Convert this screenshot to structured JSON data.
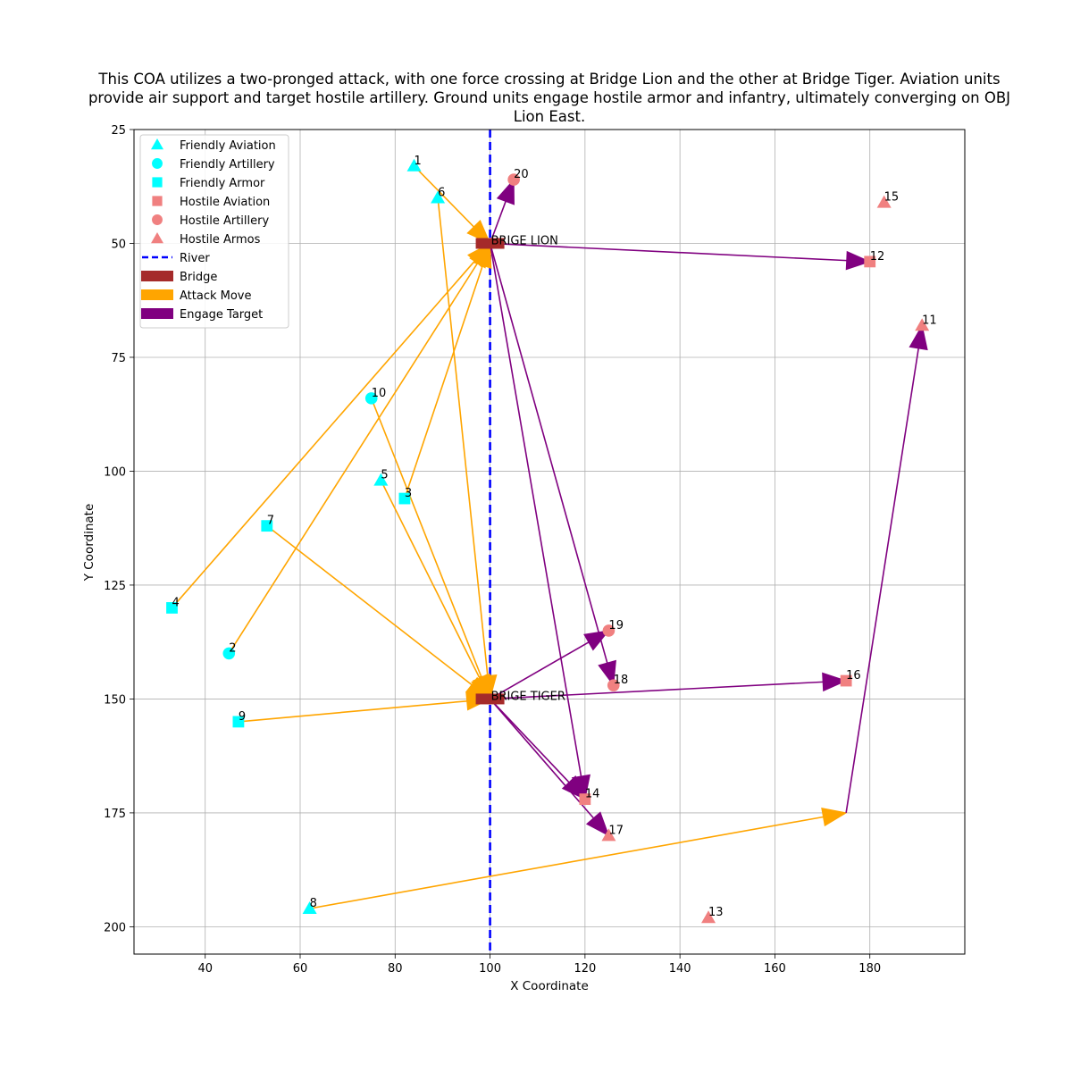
{
  "chart_data": {
    "type": "scatter",
    "title": "This COA utilizes a two-pronged attack, with one force crossing at Bridge Lion and the other at Bridge Tiger. Aviation units provide air support and target hostile artillery. Ground units engage hostile armor and infantry, ultimately converging on OBJ Lion East.",
    "title_lines": [
      "This COA utilizes a two-pronged attack, with one force crossing at Bridge Lion and the other at Bridge Tiger. Aviation units",
      "provide air support and target hostile artillery. Ground units engage hostile armor and infantry, ultimately converging on OBJ",
      "Lion East."
    ],
    "xlabel": "X Coordinate",
    "ylabel": "Y Coordinate",
    "xlim": [
      25,
      200
    ],
    "ylim": [
      206,
      25
    ],
    "y_inverted": true,
    "xticks": [
      40,
      60,
      80,
      100,
      120,
      140,
      160,
      180
    ],
    "yticks": [
      25,
      50,
      75,
      100,
      125,
      150,
      175,
      200
    ],
    "grid": true,
    "legend_position": "top-left",
    "legend": [
      {
        "label": "Friendly Aviation",
        "kind": "marker",
        "shape": "triangle",
        "color": "#00ffff"
      },
      {
        "label": "Friendly Artillery",
        "kind": "marker",
        "shape": "circle",
        "color": "#00ffff"
      },
      {
        "label": "Friendly Armor",
        "kind": "marker",
        "shape": "square",
        "color": "#00ffff"
      },
      {
        "label": "Hostile Aviation",
        "kind": "marker",
        "shape": "square",
        "color": "#f08080"
      },
      {
        "label": "Hostile Artillery",
        "kind": "marker",
        "shape": "circle",
        "color": "#f08080"
      },
      {
        "label": "Hostile Armos",
        "kind": "marker",
        "shape": "triangle",
        "color": "#f08080"
      },
      {
        "label": "River",
        "kind": "dashed-line",
        "color": "#0000ff"
      },
      {
        "label": "Bridge",
        "kind": "bar",
        "color": "#a52a2a"
      },
      {
        "label": "Attack Move",
        "kind": "bar",
        "color": "#ffa500"
      },
      {
        "label": "Engage Target",
        "kind": "bar",
        "color": "#800080"
      }
    ],
    "river": {
      "x": 100,
      "color": "#0000ff"
    },
    "bridges": [
      {
        "label": "BRIGE LION",
        "x": 100,
        "y": 50,
        "color": "#a52a2a"
      },
      {
        "label": "BRIGE TIGER",
        "x": 100,
        "y": 150,
        "color": "#a52a2a"
      }
    ],
    "units": [
      {
        "id": "1",
        "x": 84,
        "y": 33,
        "side": "friendly",
        "shape": "triangle",
        "color": "#00ffff"
      },
      {
        "id": "2",
        "x": 45,
        "y": 140,
        "side": "friendly",
        "shape": "circle",
        "color": "#00ffff"
      },
      {
        "id": "3",
        "x": 82,
        "y": 106,
        "side": "friendly",
        "shape": "square",
        "color": "#00ffff"
      },
      {
        "id": "4",
        "x": 33,
        "y": 130,
        "side": "friendly",
        "shape": "square",
        "color": "#00ffff"
      },
      {
        "id": "5",
        "x": 77,
        "y": 102,
        "side": "friendly",
        "shape": "triangle",
        "color": "#00ffff"
      },
      {
        "id": "6",
        "x": 89,
        "y": 40,
        "side": "friendly",
        "shape": "triangle",
        "color": "#00ffff"
      },
      {
        "id": "7",
        "x": 53,
        "y": 112,
        "side": "friendly",
        "shape": "square",
        "color": "#00ffff"
      },
      {
        "id": "8",
        "x": 62,
        "y": 196,
        "side": "friendly",
        "shape": "triangle",
        "color": "#00ffff"
      },
      {
        "id": "9",
        "x": 47,
        "y": 155,
        "side": "friendly",
        "shape": "square",
        "color": "#00ffff"
      },
      {
        "id": "10",
        "x": 75,
        "y": 84,
        "side": "friendly",
        "shape": "circle",
        "color": "#00ffff"
      },
      {
        "id": "11",
        "x": 191,
        "y": 68,
        "side": "hostile",
        "shape": "triangle",
        "color": "#f08080"
      },
      {
        "id": "12",
        "x": 180,
        "y": 54,
        "side": "hostile",
        "shape": "square",
        "color": "#f08080"
      },
      {
        "id": "13",
        "x": 146,
        "y": 198,
        "side": "hostile",
        "shape": "triangle",
        "color": "#f08080"
      },
      {
        "id": "14",
        "x": 120,
        "y": 172,
        "side": "hostile",
        "shape": "square",
        "color": "#f08080"
      },
      {
        "id": "15",
        "x": 183,
        "y": 41,
        "side": "hostile",
        "shape": "triangle",
        "color": "#f08080"
      },
      {
        "id": "16",
        "x": 175,
        "y": 146,
        "side": "hostile",
        "shape": "square",
        "color": "#f08080"
      },
      {
        "id": "17",
        "x": 125,
        "y": 180,
        "side": "hostile",
        "shape": "triangle",
        "color": "#f08080"
      },
      {
        "id": "18",
        "x": 126,
        "y": 147,
        "side": "hostile",
        "shape": "circle",
        "color": "#f08080"
      },
      {
        "id": "19",
        "x": 125,
        "y": 135,
        "side": "hostile",
        "shape": "circle",
        "color": "#f08080"
      },
      {
        "id": "20",
        "x": 105,
        "y": 36,
        "side": "hostile",
        "shape": "circle",
        "color": "#f08080"
      }
    ],
    "attack_moves": [
      {
        "from": [
          84,
          33
        ],
        "to": [
          100,
          50
        ]
      },
      {
        "from": [
          89,
          40
        ],
        "to": [
          100,
          150
        ]
      },
      {
        "from": [
          33,
          130
        ],
        "to": [
          100,
          50
        ]
      },
      {
        "from": [
          45,
          140
        ],
        "to": [
          100,
          50
        ]
      },
      {
        "from": [
          82,
          106
        ],
        "to": [
          100,
          50
        ]
      },
      {
        "from": [
          75,
          84
        ],
        "to": [
          100,
          150
        ]
      },
      {
        "from": [
          77,
          102
        ],
        "to": [
          100,
          150
        ]
      },
      {
        "from": [
          53,
          112
        ],
        "to": [
          100,
          150
        ]
      },
      {
        "from": [
          47,
          155
        ],
        "to": [
          100,
          150
        ]
      },
      {
        "from": [
          62,
          196
        ],
        "to": [
          175,
          175
        ]
      }
    ],
    "engage_moves": [
      {
        "from": [
          100,
          50
        ],
        "to": [
          105,
          36
        ]
      },
      {
        "from": [
          100,
          50
        ],
        "to": [
          180,
          54
        ]
      },
      {
        "from": [
          100,
          50
        ],
        "to": [
          126,
          147
        ]
      },
      {
        "from": [
          100,
          50
        ],
        "to": [
          120,
          172
        ]
      },
      {
        "from": [
          100,
          150
        ],
        "to": [
          125,
          135
        ]
      },
      {
        "from": [
          100,
          150
        ],
        "to": [
          175,
          146
        ]
      },
      {
        "from": [
          100,
          150
        ],
        "to": [
          120,
          172
        ]
      },
      {
        "from": [
          100,
          150
        ],
        "to": [
          125,
          180
        ]
      },
      {
        "from": [
          175,
          175
        ],
        "to": [
          191,
          68
        ]
      }
    ]
  }
}
